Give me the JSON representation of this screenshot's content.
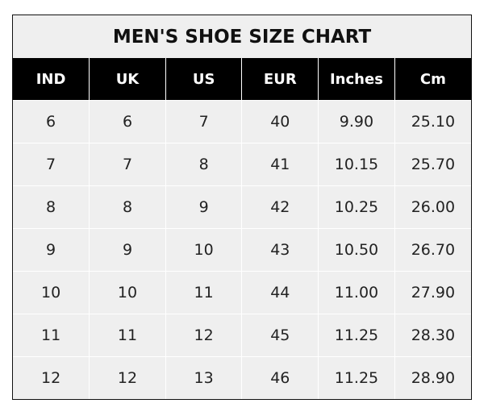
{
  "title": "MEN'S SHOE SIZE CHART",
  "columns": [
    "IND",
    "UK",
    "US",
    "EUR",
    "Inches",
    "Cm"
  ],
  "rows": [
    [
      "6",
      "6",
      "7",
      "40",
      "9.90",
      "25.10"
    ],
    [
      "7",
      "7",
      "8",
      "41",
      "10.15",
      "25.70"
    ],
    [
      "8",
      "8",
      "9",
      "42",
      "10.25",
      "26.00"
    ],
    [
      "9",
      "9",
      "10",
      "43",
      "10.50",
      "26.70"
    ],
    [
      "10",
      "10",
      "11",
      "44",
      "11.00",
      "27.90"
    ],
    [
      "11",
      "11",
      "12",
      "45",
      "11.25",
      "28.30"
    ],
    [
      "12",
      "12",
      "13",
      "46",
      "11.25",
      "28.90"
    ]
  ]
}
